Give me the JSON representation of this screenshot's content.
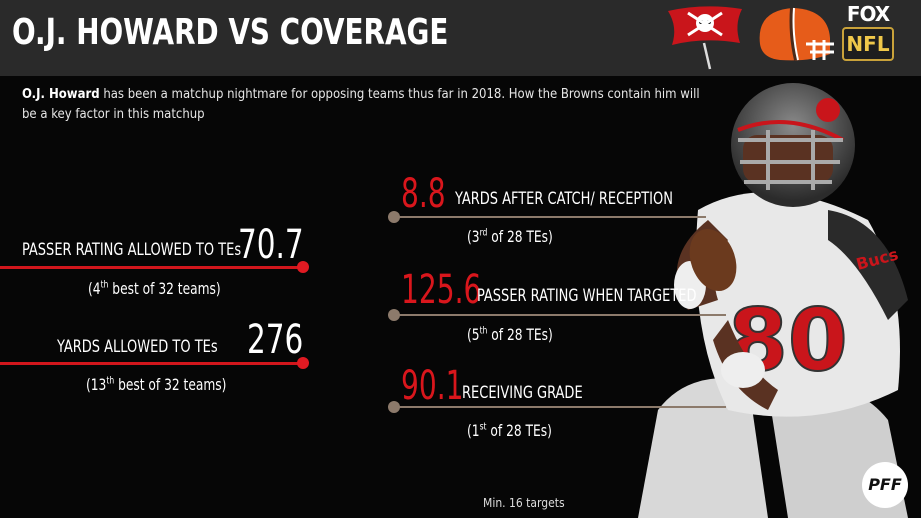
{
  "header": {
    "title": "O.J. HOWARD VS COVERAGE",
    "fox_label": "FOX",
    "nfl_label": "NFL"
  },
  "intro": {
    "name": "O.J. Howard",
    "text": " has been a matchup nightmare for opposing teams thus far in 2018. How the Browns contain him will be a key factor in this matchup"
  },
  "browns_stats": [
    {
      "label": "PASSER RATING ALLOWED TO TEs",
      "value": "70.7",
      "rank_num": "(4",
      "rank_sup": "th",
      "rank_rest": " best of 32 teams)"
    },
    {
      "label": "YARDS ALLOWED TO TEs",
      "value": "276",
      "rank_num": "(13",
      "rank_sup": "th",
      "rank_rest": " best of 32 teams)"
    }
  ],
  "howard_stats": [
    {
      "value": "8.8",
      "label": "YARDS AFTER CATCH/ RECEPTION",
      "rank_num": "(3",
      "rank_sup": "rd",
      "rank_rest": " of 28 TEs)"
    },
    {
      "value": "125.6",
      "label": "PASSER RATING WHEN TARGETED",
      "rank_num": "(5",
      "rank_sup": "th",
      "rank_rest": " of 28 TEs)"
    },
    {
      "value": "90.1",
      "label": "RECEIVING GRADE",
      "rank_num": "(1",
      "rank_sup": "st",
      "rank_rest": " of 28 TEs)"
    }
  ],
  "footnote": "Min. 16 targets",
  "pff_label": "PFF",
  "player": {
    "jersey_number": "80",
    "jersey_text": "Bucs"
  },
  "colors": {
    "accent_red": "#d9161c",
    "tan": "#8c7a6b",
    "header_bg": "#2a2a2a"
  }
}
